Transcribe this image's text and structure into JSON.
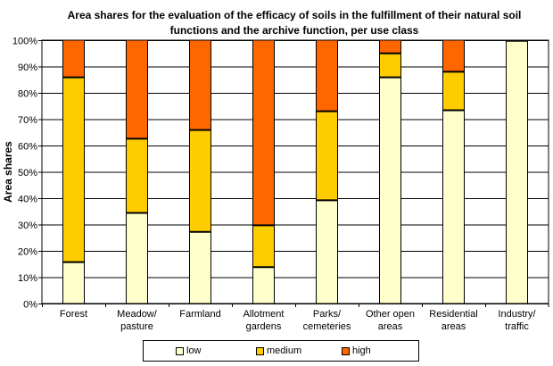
{
  "chart_data": {
    "type": "bar",
    "stacked": true,
    "title": "Area shares for the evaluation of the efficacy of soils in the fulfillment of their natural soil functions and the archive function, per use class",
    "ylabel": "Area shares",
    "xlabel": "",
    "ylim": [
      0,
      100
    ],
    "yticks": [
      "0%",
      "10%",
      "20%",
      "30%",
      "40%",
      "50%",
      "60%",
      "70%",
      "80%",
      "90%",
      "100%"
    ],
    "grid": true,
    "legend_position": "bottom",
    "categories": [
      [
        "Forest"
      ],
      [
        "Meadow/",
        "pasture"
      ],
      [
        "Farmland"
      ],
      [
        "Allotment",
        "gardens"
      ],
      [
        "Parks/",
        "cemeteries"
      ],
      [
        "Other open",
        "areas"
      ],
      [
        "Residential",
        "areas"
      ],
      [
        "Industry/",
        "traffic"
      ]
    ],
    "series": [
      {
        "name": "low",
        "color": "#ffffcc",
        "values": [
          15.7,
          34.4,
          27.2,
          13.8,
          39.2,
          85.9,
          73.4,
          99.8
        ]
      },
      {
        "name": "medium",
        "color": "#ffcc00",
        "values": [
          70.2,
          28.2,
          38.7,
          15.9,
          33.8,
          9.1,
          14.6,
          0.0
        ]
      },
      {
        "name": "high",
        "color": "#ff6600",
        "values": [
          14.1,
          37.4,
          34.1,
          70.3,
          27.0,
          5.0,
          12.0,
          0.2
        ]
      }
    ]
  }
}
